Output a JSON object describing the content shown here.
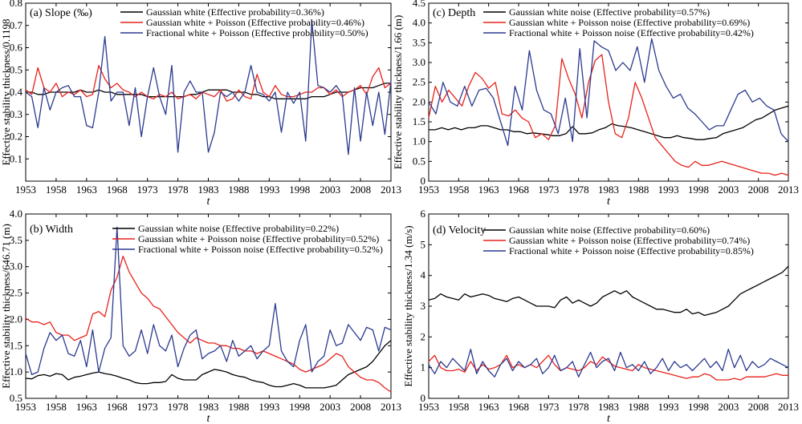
{
  "chart_data": [
    {
      "type": "line",
      "title": "(a) Slope (‰)",
      "xlabel": "t",
      "ylabel": "Effective stability thickness/0.1198",
      "xlim": [
        1953,
        2013
      ],
      "ylim": [
        0.0,
        0.8
      ],
      "xticks": [
        1953,
        1958,
        1963,
        1968,
        1973,
        1978,
        1983,
        1988,
        1993,
        1998,
        2003,
        2008,
        2013
      ],
      "yticks": [
        0.1,
        0.2,
        0.3,
        0.4,
        0.5,
        0.6,
        0.7,
        0.8
      ],
      "ytick_labels": [
        "0.1",
        "0.2",
        "0.3",
        "0.4",
        "0.5",
        "0.6",
        "0.7",
        "0.8"
      ],
      "legend": "top",
      "series": [
        {
          "name": "Gaussian white (Effective probability=0.36%)",
          "color": "#000000",
          "values": [
            0.4,
            0.4,
            0.39,
            0.39,
            0.4,
            0.4,
            0.4,
            0.4,
            0.4,
            0.41,
            0.4,
            0.4,
            0.41,
            0.4,
            0.4,
            0.39,
            0.39,
            0.39,
            0.39,
            0.39,
            0.38,
            0.38,
            0.38,
            0.38,
            0.38,
            0.38,
            0.38,
            0.39,
            0.39,
            0.4,
            0.41,
            0.41,
            0.41,
            0.41,
            0.4,
            0.4,
            0.4,
            0.39,
            0.39,
            0.38,
            0.38,
            0.37,
            0.37,
            0.37,
            0.37,
            0.37,
            0.37,
            0.38,
            0.38,
            0.38,
            0.39,
            0.4,
            0.4,
            0.4,
            0.41,
            0.42,
            0.42,
            0.42,
            0.43,
            0.44,
            0.44
          ]
        },
        {
          "name": "Gaussian white + Poisson (Effective probability=0.46%)",
          "color": "#e8221b",
          "values": [
            0.41,
            0.39,
            0.51,
            0.42,
            0.4,
            0.44,
            0.38,
            0.4,
            0.39,
            0.41,
            0.38,
            0.39,
            0.52,
            0.46,
            0.42,
            0.44,
            0.41,
            0.4,
            0.38,
            0.4,
            0.38,
            0.37,
            0.39,
            0.38,
            0.4,
            0.37,
            0.38,
            0.39,
            0.37,
            0.4,
            0.39,
            0.38,
            0.41,
            0.36,
            0.37,
            0.41,
            0.38,
            0.37,
            0.48,
            0.4,
            0.38,
            0.43,
            0.39,
            0.38,
            0.38,
            0.39,
            0.4,
            0.4,
            0.42,
            0.42,
            0.39,
            0.41,
            0.38,
            0.4,
            0.41,
            0.43,
            0.39,
            0.47,
            0.51,
            0.42,
            0.44
          ]
        },
        {
          "name": "Fractional white + Poisson (Effective probability=0.50%)",
          "color": "#2b3a8f",
          "values": [
            0.4,
            0.38,
            0.24,
            0.42,
            0.32,
            0.4,
            0.42,
            0.43,
            0.38,
            0.38,
            0.25,
            0.24,
            0.4,
            0.65,
            0.36,
            0.4,
            0.4,
            0.25,
            0.42,
            0.2,
            0.38,
            0.51,
            0.38,
            0.3,
            0.52,
            0.13,
            0.4,
            0.45,
            0.4,
            0.4,
            0.13,
            0.22,
            0.4,
            0.38,
            0.4,
            0.36,
            0.4,
            0.52,
            0.4,
            0.39,
            0.36,
            0.4,
            0.22,
            0.4,
            0.35,
            0.4,
            0.18,
            0.72,
            0.43,
            0.42,
            0.4,
            0.43,
            0.39,
            0.12,
            0.42,
            0.18,
            0.4,
            0.25,
            0.4,
            0.21,
            0.45
          ]
        }
      ]
    },
    {
      "type": "line",
      "title": "(b) Width",
      "xlabel": "t",
      "ylabel": "Effective stability thickness/646.71 (m)",
      "xlim": [
        1953,
        2013
      ],
      "ylim": [
        0.5,
        4.0
      ],
      "xticks": [
        1953,
        1958,
        1963,
        1968,
        1973,
        1978,
        1983,
        1988,
        1993,
        1998,
        2003,
        2008,
        2013
      ],
      "yticks": [
        0.5,
        1.0,
        1.5,
        2.0,
        2.5,
        3.0,
        3.5,
        4.0
      ],
      "ytick_labels": [
        "0.5",
        "1.0",
        "1.5",
        "2.0",
        "2.5",
        "3.0",
        "3.5",
        "4.0"
      ],
      "legend": "top",
      "series": [
        {
          "name": "Gaussian white noise (Effective probability=0.22%)",
          "color": "#000000",
          "values": [
            0.88,
            0.87,
            0.93,
            0.95,
            0.92,
            0.97,
            0.95,
            0.85,
            0.9,
            0.92,
            0.95,
            0.98,
            1.0,
            0.97,
            0.95,
            0.92,
            0.88,
            0.85,
            0.8,
            0.78,
            0.78,
            0.8,
            0.8,
            0.82,
            0.95,
            0.88,
            0.85,
            0.85,
            0.85,
            0.95,
            1.0,
            1.05,
            1.03,
            1.0,
            0.95,
            0.92,
            0.9,
            0.85,
            0.82,
            0.8,
            0.75,
            0.72,
            0.72,
            0.75,
            0.78,
            0.75,
            0.7,
            0.7,
            0.7,
            0.7,
            0.72,
            0.75,
            0.85,
            0.95,
            1.0,
            1.05,
            1.1,
            1.2,
            1.35,
            1.5,
            1.6
          ]
        },
        {
          "name": "Gaussian white + Poisson noise (Effective probability=0.52%)",
          "color": "#e8221b",
          "values": [
            2.02,
            1.95,
            1.95,
            1.9,
            1.95,
            1.75,
            1.7,
            1.7,
            1.6,
            1.65,
            1.7,
            2.1,
            2.15,
            2.05,
            2.55,
            2.8,
            3.2,
            2.9,
            2.7,
            2.5,
            2.4,
            2.25,
            2.2,
            2.05,
            1.9,
            1.75,
            1.65,
            1.55,
            1.65,
            1.6,
            1.55,
            1.55,
            1.5,
            1.5,
            1.45,
            1.45,
            1.4,
            1.4,
            1.35,
            1.4,
            1.35,
            1.3,
            1.25,
            1.2,
            1.15,
            1.05,
            1.0,
            1.05,
            1.1,
            1.15,
            1.25,
            1.35,
            1.3,
            1.1,
            1.0,
            0.9,
            0.85,
            0.85,
            0.8,
            0.7,
            0.62
          ]
        },
        {
          "name": "Fractional white + Poisson noise (Effective probability=0.52%)",
          "color": "#2b3a8f",
          "values": [
            1.35,
            0.95,
            1.0,
            1.45,
            1.75,
            1.6,
            1.7,
            1.35,
            1.3,
            1.6,
            1.1,
            1.8,
            1.0,
            1.45,
            1.65,
            3.75,
            1.5,
            1.3,
            1.4,
            1.8,
            1.35,
            1.9,
            1.5,
            1.4,
            1.7,
            1.1,
            1.45,
            1.7,
            1.8,
            1.25,
            1.35,
            1.4,
            1.5,
            1.2,
            1.6,
            1.3,
            1.4,
            1.5,
            1.25,
            1.4,
            1.5,
            2.3,
            1.4,
            1.2,
            1.1,
            1.6,
            1.9,
            1.0,
            1.2,
            1.3,
            1.8,
            1.5,
            1.55,
            1.9,
            1.75,
            1.6,
            1.85,
            1.8,
            1.4,
            1.85,
            1.8
          ]
        }
      ]
    },
    {
      "type": "line",
      "title": "(c) Depth",
      "xlabel": "t",
      "ylabel": "Effective stability thickness/1.66 (m)",
      "xlim": [
        1953,
        2013
      ],
      "ylim": [
        0.0,
        4.5
      ],
      "xticks": [
        1953,
        1958,
        1963,
        1968,
        1973,
        1978,
        1983,
        1988,
        1993,
        1998,
        2003,
        2008,
        2013
      ],
      "yticks": [
        0.0,
        0.5,
        1.0,
        1.5,
        2.0,
        2.5,
        3.0,
        3.5,
        4.0,
        4.5
      ],
      "ytick_labels": [
        "0",
        "0.5",
        "1.0",
        "1.5",
        "2.0",
        "2.5",
        "3.0",
        "3.5",
        "4.0",
        "4.5"
      ],
      "legend": "top",
      "series": [
        {
          "name": "Gaussian white noise (Effective probability=0.57%)",
          "color": "#000000",
          "values": [
            1.3,
            1.3,
            1.35,
            1.3,
            1.35,
            1.3,
            1.35,
            1.35,
            1.4,
            1.4,
            1.35,
            1.3,
            1.3,
            1.25,
            1.25,
            1.2,
            1.22,
            1.2,
            1.18,
            1.15,
            1.15,
            1.2,
            1.38,
            1.2,
            1.2,
            1.22,
            1.3,
            1.35,
            1.45,
            1.4,
            1.38,
            1.35,
            1.3,
            1.25,
            1.2,
            1.15,
            1.1,
            1.1,
            1.15,
            1.1,
            1.08,
            1.05,
            1.05,
            1.08,
            1.1,
            1.2,
            1.25,
            1.3,
            1.35,
            1.45,
            1.55,
            1.6,
            1.7,
            1.8,
            1.85,
            1.9
          ]
        },
        {
          "name": "Gaussian white + Poisson noise (Effective probability=0.69%)",
          "color": "#e8221b",
          "values": [
            1.6,
            2.4,
            2.0,
            2.3,
            2.1,
            1.9,
            2.4,
            2.75,
            2.6,
            2.35,
            2.5,
            1.7,
            1.65,
            1.8,
            1.6,
            1.5,
            1.1,
            1.2,
            1.05,
            1.4,
            3.1,
            2.6,
            2.2,
            1.6,
            2.5,
            3.05,
            3.2,
            2.0,
            1.2,
            1.1,
            1.6,
            2.5,
            2.1,
            1.6,
            1.1,
            0.9,
            0.7,
            0.5,
            0.4,
            0.35,
            0.5,
            0.4,
            0.4,
            0.45,
            0.5,
            0.45,
            0.4,
            0.35,
            0.3,
            0.25,
            0.2,
            0.2,
            0.15,
            0.2,
            0.15
          ]
        },
        {
          "name": "Fractional white + Poisson noise (Effective probability=0.42%)",
          "color": "#2b3a8f",
          "values": [
            2.0,
            1.7,
            2.5,
            2.0,
            1.9,
            2.4,
            1.9,
            2.3,
            2.35,
            2.1,
            1.5,
            0.9,
            2.4,
            1.8,
            3.3,
            2.3,
            1.8,
            1.7,
            1.2,
            2.1,
            1.0,
            3.35,
            1.6,
            3.55,
            3.4,
            3.3,
            2.8,
            3.0,
            2.8,
            3.4,
            2.5,
            3.6,
            2.8,
            2.4,
            2.1,
            2.2,
            1.85,
            1.7,
            1.5,
            1.3,
            1.4,
            1.4,
            1.8,
            2.2,
            2.3,
            2.0,
            2.1,
            1.9,
            1.8,
            1.2,
            1.0
          ]
        }
      ]
    },
    {
      "type": "line",
      "title": "(d) Velocity",
      "xlabel": "t",
      "ylabel": "Effective stability thickness/1.34 (m/s)",
      "xlim": [
        1953,
        2013
      ],
      "ylim": [
        0,
        6
      ],
      "xticks": [
        1953,
        1958,
        1963,
        1968,
        1973,
        1978,
        1983,
        1988,
        1993,
        1998,
        2003,
        2008,
        2013
      ],
      "yticks": [
        0,
        1,
        2,
        3,
        4,
        5,
        6
      ],
      "ytick_labels": [
        "0",
        "1",
        "2",
        "3",
        "4",
        "5",
        "6"
      ],
      "legend": "top",
      "series": [
        {
          "name": "Gaussian white noise (Effective probability=0.60%)",
          "color": "#000000",
          "values": [
            3.2,
            3.25,
            3.4,
            3.3,
            3.25,
            3.2,
            3.4,
            3.3,
            3.35,
            3.4,
            3.35,
            3.25,
            3.2,
            3.15,
            3.25,
            3.3,
            3.2,
            3.1,
            3.0,
            3.0,
            3.0,
            2.95,
            3.2,
            3.3,
            3.1,
            3.2,
            3.1,
            3.0,
            3.1,
            3.3,
            3.4,
            3.5,
            3.4,
            3.5,
            3.3,
            3.2,
            3.1,
            3.0,
            2.9,
            2.9,
            2.85,
            2.8,
            2.8,
            2.9,
            2.75,
            2.8,
            2.7,
            2.75,
            2.8,
            2.9,
            3.0,
            3.2,
            3.4,
            3.5,
            3.6,
            3.7,
            3.8,
            3.9,
            4.0,
            4.1,
            4.3
          ]
        },
        {
          "name": "Gaussian white + Poisson noise (Effective probability=0.74%)",
          "color": "#e8221b",
          "values": [
            1.2,
            1.4,
            1.0,
            0.9,
            0.9,
            0.95,
            0.85,
            1.2,
            0.9,
            1.1,
            0.95,
            1.0,
            1.1,
            1.4,
            1.0,
            1.1,
            1.0,
            1.1,
            1.0,
            1.2,
            1.4,
            1.1,
            0.9,
            1.0,
            0.95,
            0.9,
            1.0,
            1.2,
            1.1,
            1.35,
            1.2,
            1.05,
            1.0,
            0.95,
            0.9,
            1.1,
            1.0,
            0.95,
            0.9,
            0.85,
            0.8,
            0.75,
            0.7,
            0.65,
            0.7,
            0.7,
            0.8,
            0.75,
            0.6,
            0.6,
            0.6,
            0.65,
            0.6,
            0.7,
            0.7,
            0.7,
            0.7,
            0.75,
            0.8,
            0.75,
            0.75
          ]
        },
        {
          "name": "Fractional white + Poisson noise (Effective probability=0.85%)",
          "color": "#2b3a8f",
          "values": [
            1.1,
            0.8,
            1.2,
            1.0,
            1.3,
            1.1,
            0.9,
            1.6,
            0.8,
            1.2,
            0.9,
            0.7,
            1.1,
            1.3,
            0.9,
            1.2,
            1.0,
            1.1,
            1.3,
            0.8,
            1.0,
            1.4,
            0.9,
            1.0,
            1.2,
            0.7,
            1.1,
            1.5,
            1.0,
            1.2,
            1.3,
            0.9,
            1.5,
            1.0,
            1.1,
            0.9,
            1.2,
            0.8,
            1.0,
            1.3,
            0.9,
            1.2,
            1.0,
            1.1,
            0.9,
            1.1,
            1.3,
            1.0,
            1.2,
            0.9,
            1.6,
            1.0,
            1.4,
            0.9,
            1.2,
            1.0,
            1.1,
            1.3,
            1.2,
            1.1,
            1.0
          ]
        }
      ]
    }
  ]
}
